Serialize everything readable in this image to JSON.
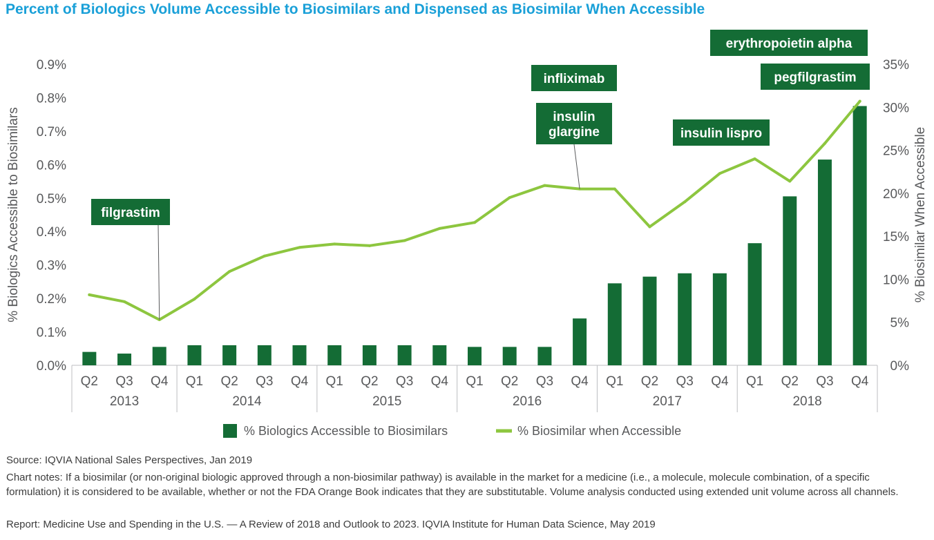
{
  "title": "Percent of Biologics Volume Accessible to Biosimilars and Dispensed as Biosimilar When Accessible",
  "colors": {
    "bar": "#146c35",
    "line": "#8dc63f",
    "title": "#1aa0d8",
    "annotation": "#146c35"
  },
  "chart_data": {
    "type": "bar",
    "quarters": [
      "Q2",
      "Q3",
      "Q4",
      "Q1",
      "Q2",
      "Q3",
      "Q4",
      "Q1",
      "Q2",
      "Q3",
      "Q4",
      "Q1",
      "Q2",
      "Q3",
      "Q4",
      "Q1",
      "Q2",
      "Q3",
      "Q4",
      "Q1",
      "Q2",
      "Q3",
      "Q4"
    ],
    "years": [
      {
        "label": "2013",
        "start": 0,
        "count": 3
      },
      {
        "label": "2014",
        "start": 3,
        "count": 4
      },
      {
        "label": "2015",
        "start": 7,
        "count": 4
      },
      {
        "label": "2016",
        "start": 11,
        "count": 4
      },
      {
        "label": "2017",
        "start": 15,
        "count": 4
      },
      {
        "label": "2018",
        "start": 19,
        "count": 4
      }
    ],
    "series": [
      {
        "name": "% Biologics Accessible to Biosimilars",
        "type": "bar",
        "axis": "left",
        "values": [
          0.04,
          0.035,
          0.055,
          0.06,
          0.06,
          0.06,
          0.06,
          0.06,
          0.06,
          0.06,
          0.06,
          0.055,
          0.055,
          0.055,
          0.14,
          0.245,
          0.265,
          0.275,
          0.275,
          0.365,
          0.505,
          0.615,
          0.775
        ]
      },
      {
        "name": "% Biosimilar when Accessible",
        "type": "line",
        "axis": "right",
        "values": [
          8.2,
          7.4,
          5.3,
          7.7,
          10.9,
          12.7,
          13.7,
          14.1,
          13.9,
          14.5,
          15.9,
          16.6,
          19.5,
          20.9,
          20.5,
          20.5,
          16.1,
          19.0,
          22.3,
          24.0,
          21.4,
          25.8,
          30.7
        ]
      }
    ],
    "y_left": {
      "label": "% Biologics Accessible to Biosimilars",
      "min": 0,
      "max": 0.9,
      "ticks": [
        "0.0%",
        "0.1%",
        "0.2%",
        "0.3%",
        "0.4%",
        "0.5%",
        "0.6%",
        "0.7%",
        "0.8%",
        "0.9%"
      ]
    },
    "y_right": {
      "label": "% Biosimilar When Accessible",
      "min": 0,
      "max": 35,
      "ticks": [
        "0%",
        "5%",
        "10%",
        "15%",
        "20%",
        "25%",
        "30%",
        "35%"
      ]
    },
    "annotations": [
      {
        "lines": [
          "filgrastim"
        ],
        "index": 2
      },
      {
        "lines": [
          "infliximab"
        ],
        "index": 14
      },
      {
        "lines": [
          "insulin",
          "glargine"
        ],
        "index": 14
      },
      {
        "lines": [
          "insulin lispro"
        ],
        "index": 19
      },
      {
        "lines": [
          "erythropoietin alpha"
        ],
        "index": 22
      },
      {
        "lines": [
          "pegfilgrastim"
        ],
        "index": 22
      }
    ],
    "legend": {
      "position": "bottom"
    }
  },
  "footer": {
    "source": "Source: IQVIA National Sales Perspectives, Jan 2019",
    "notes": "Chart notes: If a biosimilar (or non-original biologic approved through a non-biosimilar pathway) is available in the market for a medicine (i.e., a molecule, molecule combination, of a specific formulation) it is considered to be available, whether or not the FDA Orange Book indicates that they are substitutable. Volume analysis conducted using extended unit volume across all channels.",
    "report": "Report: Medicine Use and Spending in the U.S. — A Review of 2018 and Outlook to 2023. IQVIA Institute for Human Data Science, May 2019"
  }
}
